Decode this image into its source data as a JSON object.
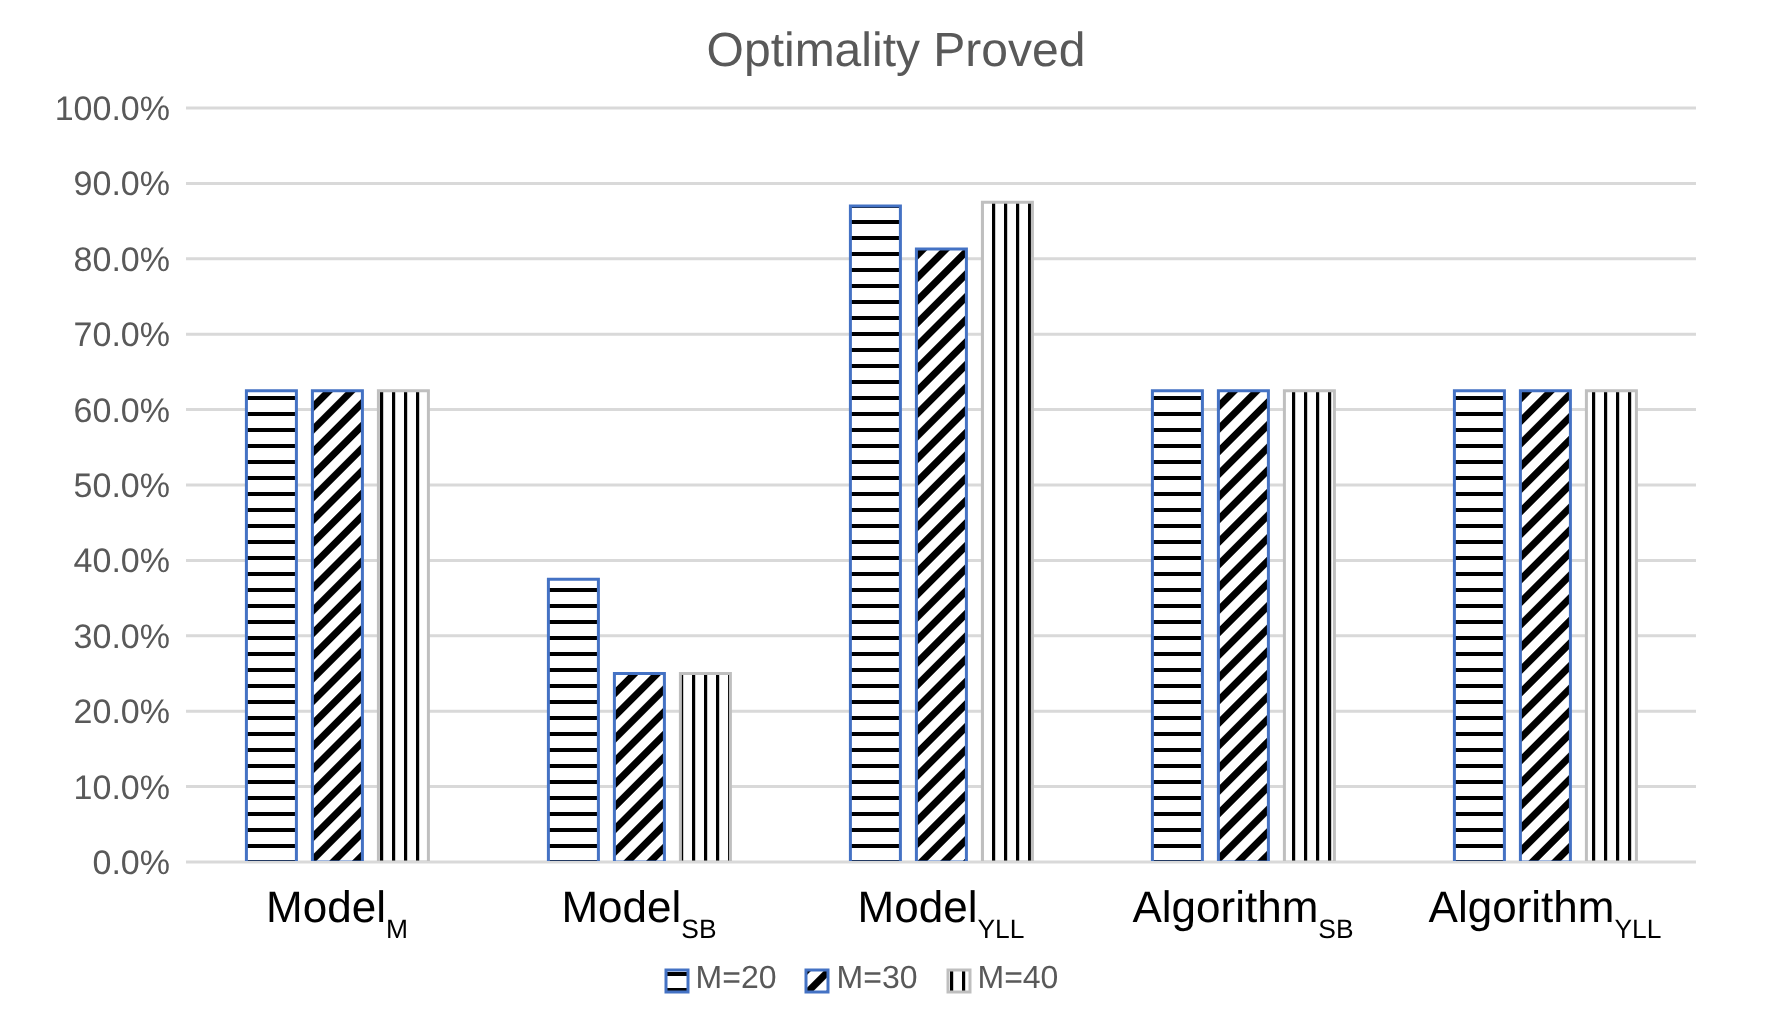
{
  "chart_data": {
    "type": "bar",
    "title": "Optimality Proved",
    "categories": [
      "Model$_{M}$",
      "Model$_{SB}$",
      "Model$_{YLL}$",
      "Algorithm$_{SB}$",
      "Algorithm$_{YLL}$"
    ],
    "series": [
      {
        "name": "M=20",
        "color": "#4472c4",
        "values": [
          62.5,
          37.5,
          87,
          62.5,
          62.5
        ]
      },
      {
        "name": "M=30",
        "color": "#4472c4",
        "values": [
          62.5,
          25,
          81.3,
          62.5,
          62.5
        ]
      },
      {
        "name": "M=40",
        "color": "#bfbfbf",
        "values": [
          62.5,
          25,
          87.5,
          62.5,
          62.5
        ]
      }
    ],
    "ylim": [
      0,
      100
    ],
    "yticks": [
      {
        "value": 0,
        "label": "0.0%"
      },
      {
        "value": 10,
        "label": "10.0%"
      },
      {
        "value": 20,
        "label": "20.0%"
      },
      {
        "value": 30,
        "label": "30.0%"
      },
      {
        "value": 40,
        "label": "40.0%"
      },
      {
        "value": 50,
        "label": "50.0%"
      },
      {
        "value": 60,
        "label": "60.0%"
      },
      {
        "value": 70,
        "label": "70.0%"
      },
      {
        "value": 80,
        "label": "80.0%"
      },
      {
        "value": 90,
        "label": "90.0%"
      },
      {
        "value": 100,
        "label": "100.0%"
      }
    ],
    "grid": "y",
    "legend": "bottom"
  }
}
